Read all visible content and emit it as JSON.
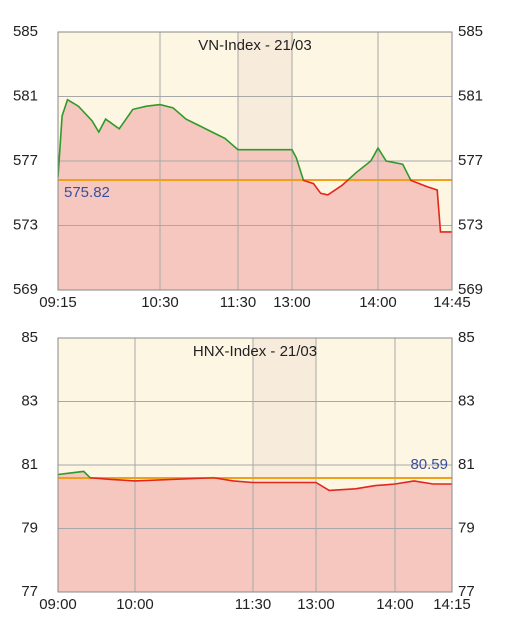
{
  "chart_data": [
    {
      "type": "line",
      "title": "VN-Index - 21/03",
      "x": [
        "09:15",
        "09:18",
        "09:22",
        "09:30",
        "09:40",
        "09:45",
        "09:50",
        "10:00",
        "10:10",
        "10:20",
        "10:30",
        "10:40",
        "10:50",
        "11:00",
        "11:10",
        "11:20",
        "11:30",
        "13:00",
        "13:03",
        "13:08",
        "13:15",
        "13:20",
        "13:25",
        "13:35",
        "13:45",
        "13:55",
        "14:00",
        "14:05",
        "14:15",
        "14:20",
        "14:30",
        "14:36",
        "14:38",
        "14:45"
      ],
      "values": [
        576.0,
        579.8,
        580.8,
        580.4,
        579.5,
        578.8,
        579.6,
        579.0,
        580.2,
        580.4,
        580.5,
        580.3,
        579.6,
        579.2,
        578.8,
        578.4,
        577.7,
        577.7,
        577.2,
        575.8,
        575.6,
        575.0,
        574.9,
        575.5,
        576.3,
        577.0,
        577.8,
        577.0,
        576.8,
        575.8,
        575.4,
        575.2,
        572.6,
        572.6
      ],
      "reference": 575.82,
      "xticks": [
        "09:15",
        "10:30",
        "11:30",
        "13:00",
        "14:00",
        "14:45"
      ],
      "ylim": [
        569,
        585
      ],
      "yticks": [
        569,
        573,
        577,
        581,
        585
      ],
      "color_up": "#2f9a2a",
      "color_down": "#e3261b",
      "reference_color": "#f0a019",
      "fill": "#f5c7be",
      "background": "#fdf6e3",
      "break_color": "#f7ebdb",
      "grid": true
    },
    {
      "type": "line",
      "title": "HNX-Index - 21/03",
      "x": [
        "09:00",
        "09:10",
        "09:20",
        "09:25",
        "09:40",
        "10:00",
        "10:30",
        "11:00",
        "11:15",
        "11:30",
        "13:00",
        "13:10",
        "13:30",
        "13:45",
        "14:00",
        "14:05",
        "14:10",
        "14:15"
      ],
      "values": [
        80.7,
        80.75,
        80.8,
        80.6,
        80.55,
        80.5,
        80.55,
        80.6,
        80.5,
        80.45,
        80.45,
        80.2,
        80.25,
        80.35,
        80.4,
        80.5,
        80.4,
        80.4
      ],
      "reference": 80.59,
      "xticks": [
        "09:00",
        "10:00",
        "11:30",
        "13:00",
        "14:00",
        "14:15"
      ],
      "ylim": [
        77,
        85
      ],
      "yticks": [
        77,
        79,
        81,
        83,
        85
      ],
      "color_up": "#2f9a2a",
      "color_down": "#e3261b",
      "reference_color": "#f0a019",
      "fill": "#f5c7be",
      "background": "#fdf6e3",
      "break_color": "#f7ebdb",
      "grid": true
    }
  ]
}
